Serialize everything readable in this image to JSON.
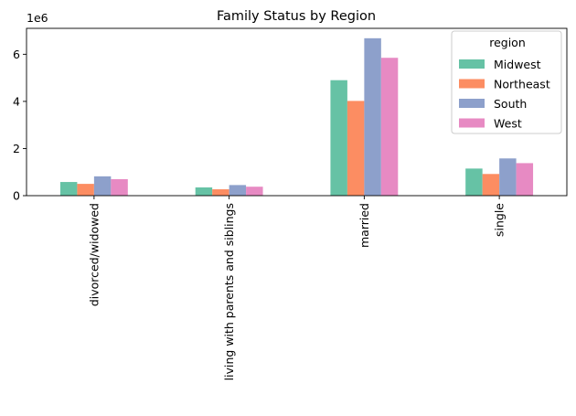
{
  "chart_data": {
    "type": "bar",
    "title": "Family Status by Region",
    "xlabel": "",
    "ylabel": "",
    "y_scale_label": "1e6",
    "categories": [
      "divorced/widowed",
      "living with parents and siblings",
      "married",
      "single"
    ],
    "ylim": [
      0,
      7100000
    ],
    "yticks": [
      0,
      2000000,
      4000000,
      6000000
    ],
    "ytick_labels": [
      "0",
      "2",
      "4",
      "6"
    ],
    "grid": false,
    "legend": {
      "title": "region",
      "placement": "top-right"
    },
    "series": [
      {
        "name": "Midwest",
        "color": "#66c2a5",
        "values": [
          580000,
          350000,
          4900000,
          1150000
        ]
      },
      {
        "name": "Northeast",
        "color": "#fc8d62",
        "values": [
          500000,
          270000,
          4020000,
          920000
        ]
      },
      {
        "name": "South",
        "color": "#8da0cb",
        "values": [
          820000,
          450000,
          6680000,
          1580000
        ]
      },
      {
        "name": "West",
        "color": "#e78ac3",
        "values": [
          700000,
          380000,
          5850000,
          1380000
        ]
      }
    ]
  }
}
